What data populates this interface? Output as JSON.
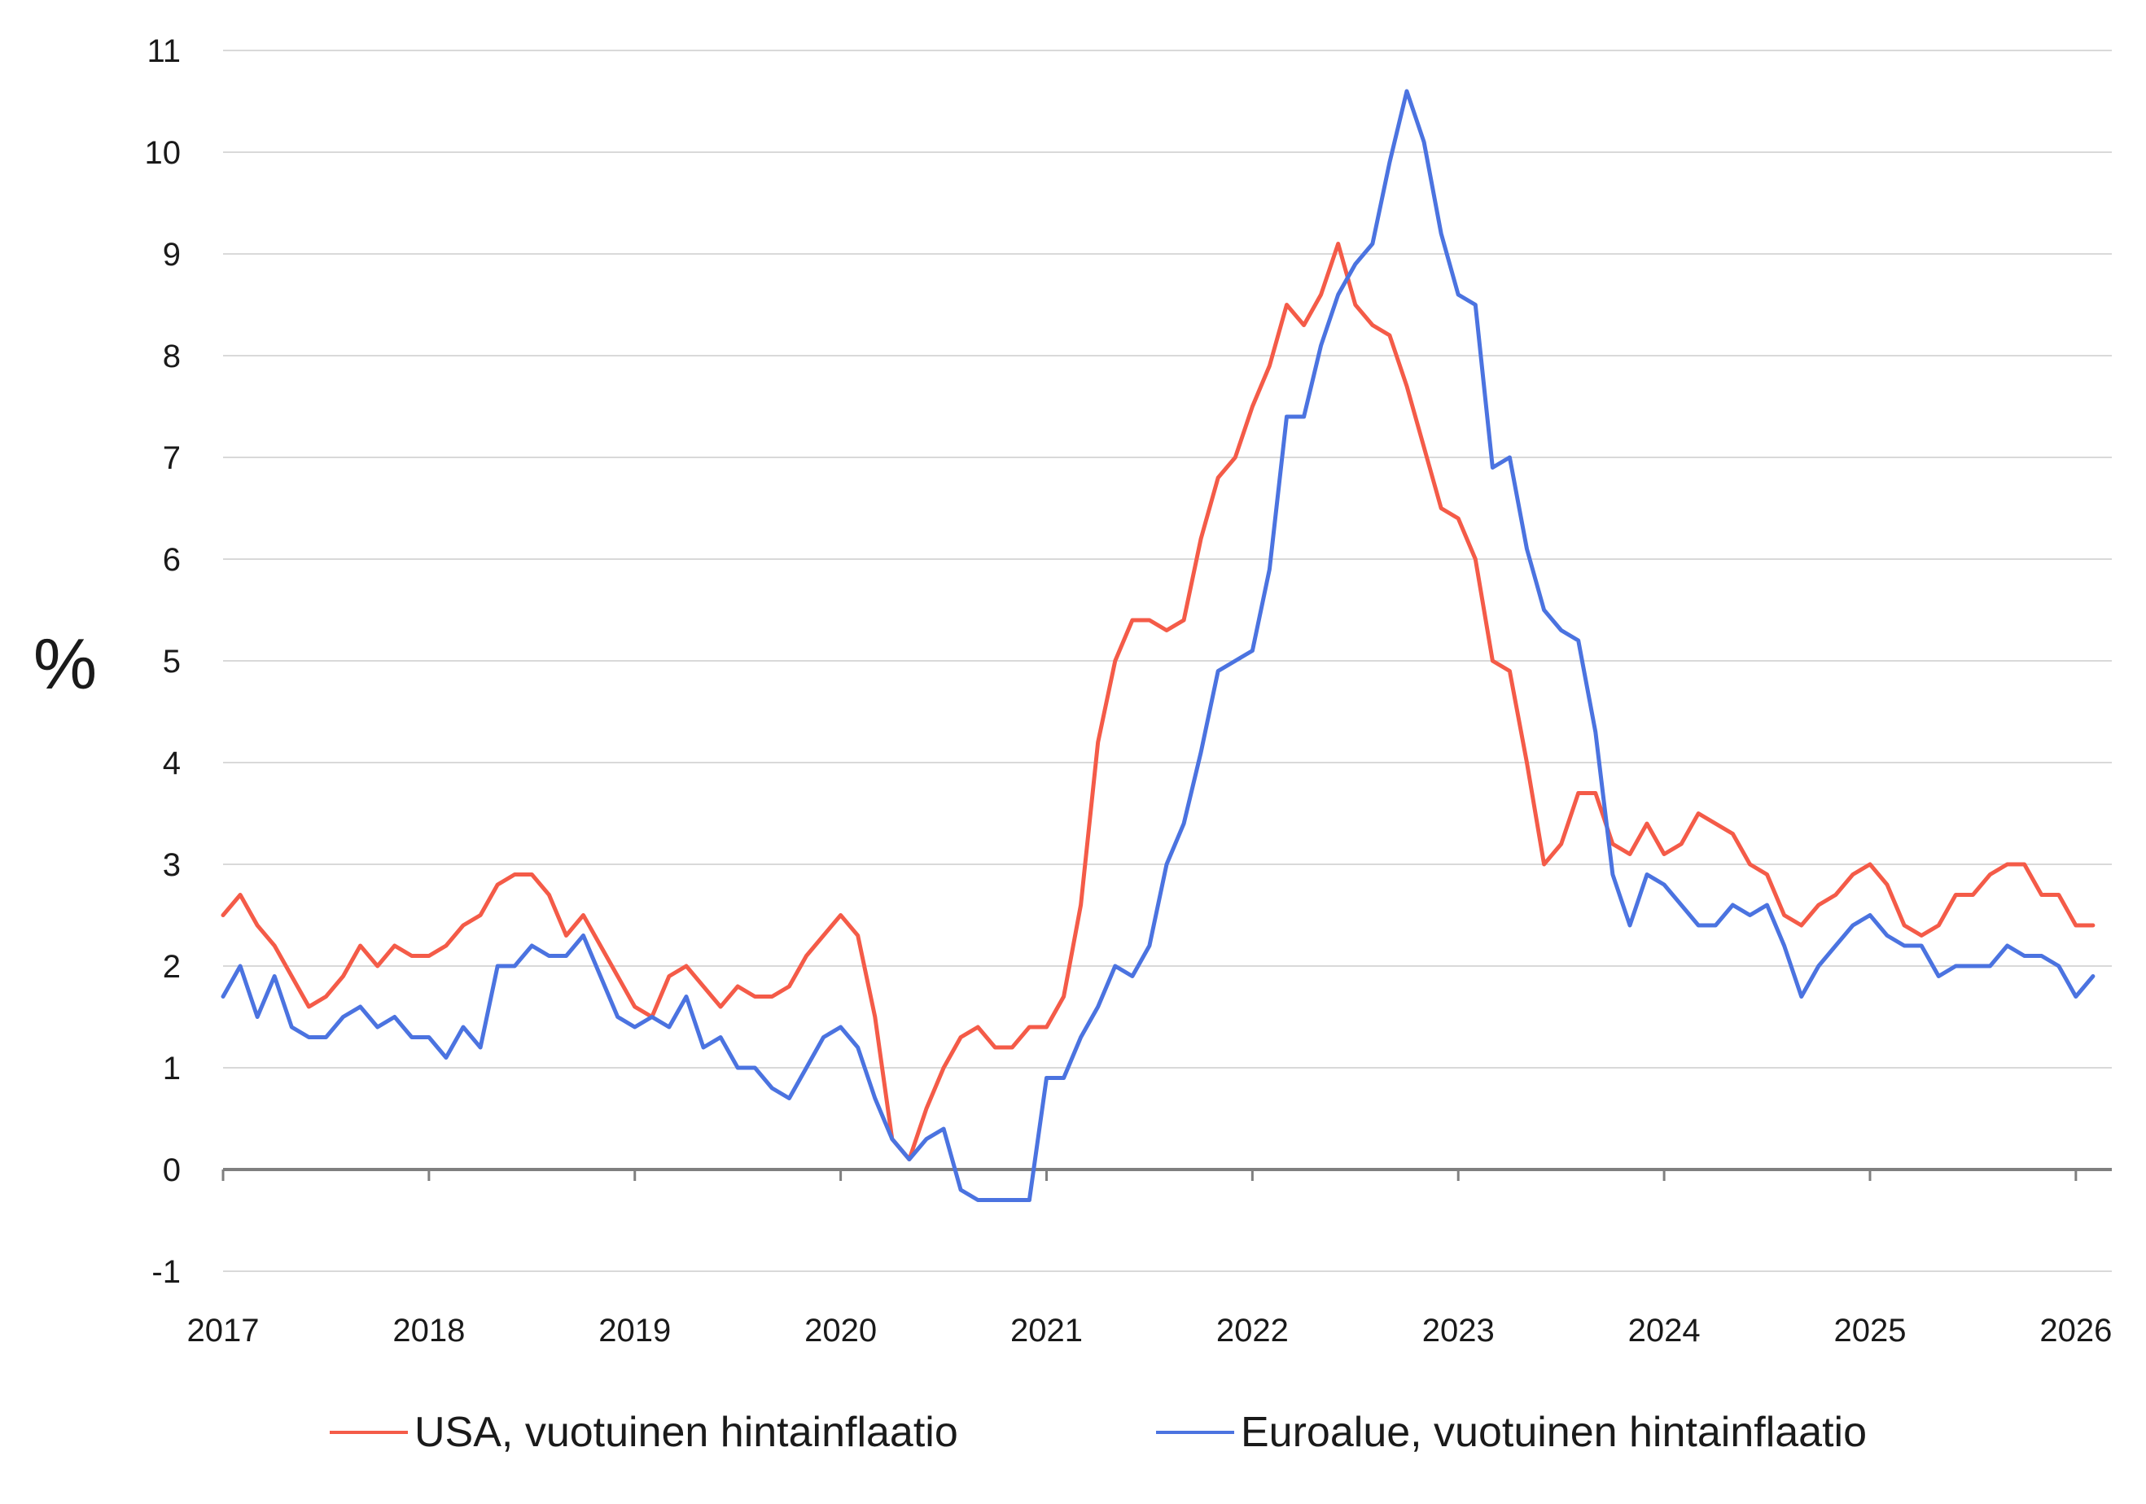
{
  "chart_data": {
    "type": "line",
    "ylabel": "%",
    "xlabel": "",
    "ylim": [
      -1,
      11
    ],
    "yticks": [
      -1,
      0,
      1,
      2,
      3,
      4,
      5,
      6,
      7,
      8,
      9,
      10,
      11
    ],
    "ytick_labels": [
      "-1",
      "0",
      "1",
      "2",
      "3",
      "4",
      "5",
      "6",
      "7",
      "8",
      "9",
      "10",
      "11"
    ],
    "xlim": [
      2017,
      2026.1667
    ],
    "xticks": [
      2017,
      2018,
      2019,
      2020,
      2021,
      2022,
      2023,
      2024,
      2025,
      2026
    ],
    "xtick_labels": [
      "2017",
      "2018",
      "2019",
      "2020",
      "2021",
      "2022",
      "2023",
      "2024",
      "2025",
      "2026"
    ],
    "grid": true,
    "legend_position": "bottom",
    "start": "2017-01",
    "frequency": "monthly",
    "series": [
      {
        "name": "USA, vuotuinen hintainflaatio",
        "color": "#f45b48",
        "values": [
          2.5,
          2.7,
          2.4,
          2.2,
          1.9,
          1.6,
          1.7,
          1.9,
          2.2,
          2.0,
          2.2,
          2.1,
          2.1,
          2.2,
          2.4,
          2.5,
          2.8,
          2.9,
          2.9,
          2.7,
          2.3,
          2.5,
          2.2,
          1.9,
          1.6,
          1.5,
          1.9,
          2.0,
          1.8,
          1.6,
          1.8,
          1.7,
          1.7,
          1.8,
          2.1,
          2.3,
          2.5,
          2.3,
          1.5,
          0.3,
          0.1,
          0.6,
          1.0,
          1.3,
          1.4,
          1.2,
          1.2,
          1.4,
          1.4,
          1.7,
          2.6,
          4.2,
          5.0,
          5.4,
          5.4,
          5.3,
          5.4,
          6.2,
          6.8,
          7.0,
          7.5,
          7.9,
          8.5,
          8.3,
          8.6,
          9.1,
          8.5,
          8.3,
          8.2,
          7.7,
          7.1,
          6.5,
          6.4,
          6.0,
          5.0,
          4.9,
          4.0,
          3.0,
          3.2,
          3.7,
          3.7,
          3.2,
          3.1,
          3.4,
          3.1,
          3.2,
          3.5,
          3.4,
          3.3,
          3.0,
          2.9,
          2.5,
          2.4,
          2.6,
          2.7,
          2.9,
          3.0,
          2.8,
          2.4,
          2.3,
          2.4,
          2.7,
          2.7,
          2.9,
          3.0,
          3.0,
          2.7,
          2.7,
          2.4,
          2.4
        ]
      },
      {
        "name": "Euroalue, vuotuinen hintainflaatio",
        "color": "#4b73e0",
        "values": [
          1.7,
          2.0,
          1.5,
          1.9,
          1.4,
          1.3,
          1.3,
          1.5,
          1.6,
          1.4,
          1.5,
          1.3,
          1.3,
          1.1,
          1.4,
          1.2,
          2.0,
          2.0,
          2.2,
          2.1,
          2.1,
          2.3,
          1.9,
          1.5,
          1.4,
          1.5,
          1.4,
          1.7,
          1.2,
          1.3,
          1.0,
          1.0,
          0.8,
          0.7,
          1.0,
          1.3,
          1.4,
          1.2,
          0.7,
          0.3,
          0.1,
          0.3,
          0.4,
          -0.2,
          -0.3,
          -0.3,
          -0.3,
          -0.3,
          0.9,
          0.9,
          1.3,
          1.6,
          2.0,
          1.9,
          2.2,
          3.0,
          3.4,
          4.1,
          4.9,
          5.0,
          5.1,
          5.9,
          7.4,
          7.4,
          8.1,
          8.6,
          8.9,
          9.1,
          9.9,
          10.6,
          10.1,
          9.2,
          8.6,
          8.5,
          6.9,
          7.0,
          6.1,
          5.5,
          5.3,
          5.2,
          4.3,
          2.9,
          2.4,
          2.9,
          2.8,
          2.6,
          2.4,
          2.4,
          2.6,
          2.5,
          2.6,
          2.2,
          1.7,
          2.0,
          2.2,
          2.4,
          2.5,
          2.3,
          2.2,
          2.2,
          1.9,
          2.0,
          2.0,
          2.0,
          2.2,
          2.1,
          2.1,
          2.0,
          1.7,
          1.9
        ]
      }
    ]
  },
  "legend": {
    "items": [
      {
        "label": "USA, vuotuinen hintainflaatio",
        "color": "#f45b48"
      },
      {
        "label": "Euroalue, vuotuinen hintainflaatio",
        "color": "#4b73e0"
      }
    ]
  }
}
